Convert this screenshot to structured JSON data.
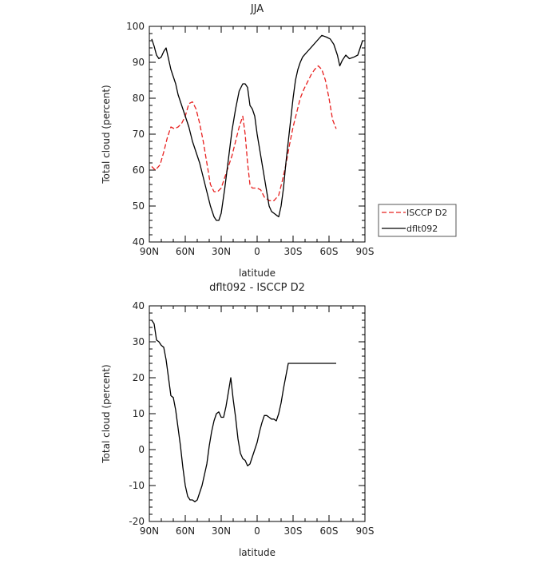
{
  "chart_data": [
    {
      "type": "line",
      "title": "JJA",
      "xlabel": "latitude",
      "ylabel": "Total cloud (percent)",
      "x_ticks": [
        {
          "value": 90,
          "label": "90N"
        },
        {
          "value": 60,
          "label": "60N"
        },
        {
          "value": 30,
          "label": "30N"
        },
        {
          "value": 0,
          "label": "0"
        },
        {
          "value": -30,
          "label": "30S"
        },
        {
          "value": -60,
          "label": "60S"
        },
        {
          "value": -90,
          "label": "90S"
        }
      ],
      "xlim": [
        90,
        -90
      ],
      "ylim": [
        40,
        100
      ],
      "y_ticks": [
        40,
        50,
        60,
        70,
        80,
        90,
        100
      ],
      "legend_position": "right",
      "series": [
        {
          "name": "ISCCP D2",
          "color": "#e8201f",
          "dash": "dashed",
          "x": [
            88,
            85,
            81,
            78,
            75,
            72,
            69,
            66,
            63,
            60,
            57,
            54,
            51,
            48,
            45,
            42,
            39,
            36,
            33,
            30,
            27,
            24,
            21,
            18,
            15,
            12,
            10,
            8,
            6,
            4,
            2,
            0,
            -3,
            -6,
            -10,
            -14,
            -18,
            -21,
            -24,
            -27,
            -30,
            -33,
            -36,
            -39,
            -42,
            -45,
            -48,
            -51,
            -54,
            -57,
            -60,
            -63,
            -66
          ],
          "y": [
            61,
            60,
            61.5,
            65,
            69,
            72,
            71.5,
            72,
            73,
            75,
            78.5,
            79,
            77,
            73,
            68,
            62,
            56,
            54,
            54,
            55,
            58,
            61,
            64,
            68,
            72,
            75,
            70,
            62,
            56,
            55,
            55,
            55,
            54.5,
            52.5,
            51.5,
            51.5,
            53,
            57,
            61.5,
            67,
            72,
            76,
            80,
            82.5,
            84.5,
            86.5,
            88,
            89,
            88,
            85,
            80,
            74,
            71.5
          ]
        },
        {
          "name": "dflt092",
          "color": "#000000",
          "dash": "solid",
          "x": [
            88,
            86,
            84,
            82,
            80,
            78,
            76,
            74,
            72,
            70,
            68,
            66,
            64,
            62,
            60,
            57,
            54,
            51,
            48,
            45,
            42,
            39,
            36,
            34,
            32,
            30,
            27,
            24,
            21,
            18,
            15,
            12,
            10,
            8,
            6,
            4,
            2,
            0,
            -2,
            -4,
            -6,
            -8,
            -10,
            -12,
            -14,
            -16,
            -18,
            -20,
            -22,
            -24,
            -26,
            -28,
            -30,
            -32,
            -34,
            -36,
            -38,
            -42,
            -46,
            -50,
            -54,
            -58,
            -61,
            -64,
            -67,
            -69,
            -71,
            -74,
            -77,
            -81,
            -84,
            -88
          ],
          "y": [
            96.5,
            94.5,
            92,
            91,
            91.5,
            93,
            94,
            91,
            88,
            86,
            84,
            81,
            79,
            77,
            75,
            72,
            68,
            65,
            62,
            58,
            54,
            50,
            47,
            46,
            46,
            48,
            55,
            63,
            71,
            77,
            82,
            84,
            84,
            83,
            78,
            77,
            75,
            70,
            66,
            62,
            58,
            54,
            50,
            48.5,
            48,
            47.5,
            47,
            50,
            55,
            62,
            68,
            74,
            80,
            85,
            88,
            90,
            91.5,
            93,
            94.5,
            96,
            97.5,
            97,
            96.5,
            95,
            92,
            89,
            90.5,
            92,
            91,
            91.5,
            92,
            96
          ]
        }
      ]
    },
    {
      "type": "line",
      "title": "dflt092 - ISCCP D2",
      "xlabel": "latitude",
      "ylabel": "Total cloud (percent)",
      "x_ticks": [
        {
          "value": 90,
          "label": "90N"
        },
        {
          "value": 60,
          "label": "60N"
        },
        {
          "value": 30,
          "label": "30N"
        },
        {
          "value": 0,
          "label": "0"
        },
        {
          "value": -30,
          "label": "30S"
        },
        {
          "value": -60,
          "label": "60S"
        },
        {
          "value": -90,
          "label": "90S"
        }
      ],
      "xlim": [
        90,
        -90
      ],
      "ylim": [
        -20,
        40
      ],
      "y_ticks": [
        -20,
        -10,
        0,
        10,
        20,
        30,
        40
      ],
      "series": [
        {
          "color": "#000000",
          "dash": "solid",
          "x": [
            88,
            86,
            84,
            82,
            80,
            78,
            76,
            74,
            72,
            70,
            68,
            66,
            64,
            62,
            60,
            58,
            56,
            54,
            52,
            50,
            48,
            46,
            44,
            42,
            40,
            38,
            36,
            34,
            32,
            30,
            28,
            26,
            24,
            22,
            20,
            18,
            16,
            14,
            12,
            10,
            8,
            6,
            4,
            2,
            0,
            -2,
            -4,
            -6,
            -8,
            -10,
            -12,
            -14,
            -16,
            -18,
            -20,
            -22,
            -24,
            -26,
            -28,
            -30,
            -32,
            -34,
            -36,
            -38,
            -40,
            -42,
            -44,
            -46,
            -48,
            -50,
            -52,
            -54,
            -56,
            -58,
            -60,
            -62,
            -64,
            -66
          ],
          "y": [
            36,
            35,
            30.5,
            30,
            29,
            28.5,
            25,
            20,
            15,
            14.5,
            11,
            6,
            1,
            -5,
            -10,
            -13,
            -14,
            -14,
            -14.5,
            -14,
            -12,
            -10,
            -7,
            -4,
            1,
            5,
            8,
            10,
            10.5,
            9,
            9,
            12,
            16,
            20,
            14,
            9,
            3,
            -1,
            -2.5,
            -3,
            -4.5,
            -4,
            -2,
            0,
            2,
            5,
            7.5,
            9.5,
            9.5,
            9,
            8.5,
            8.5,
            8,
            10,
            13,
            17,
            20.5,
            24,
            24,
            24,
            24,
            24,
            24,
            24,
            24,
            24,
            24,
            24,
            24,
            24,
            24,
            24,
            24,
            24,
            24,
            24,
            24,
            24
          ]
        }
      ]
    }
  ]
}
